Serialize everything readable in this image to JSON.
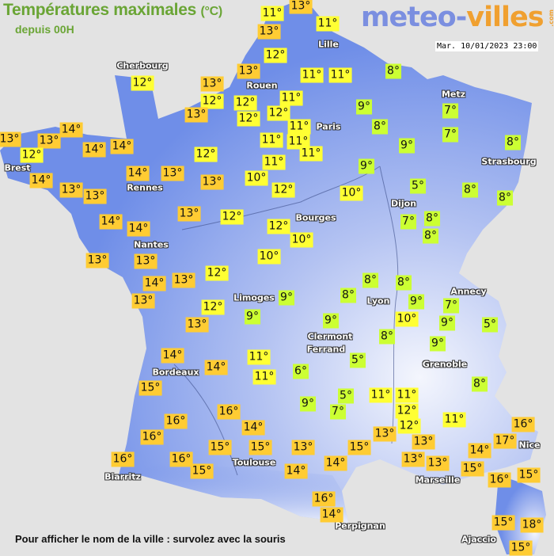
{
  "header": {
    "title": "Températures maximales",
    "unit": "(°C)",
    "subtitle": "depuis 00H",
    "logo_main": "meteo-",
    "logo_accent": "villes",
    "logo_suffix": ".com",
    "timestamp": "Mar. 10/01/2023 23:00"
  },
  "footer": {
    "hint": "Pour afficher le nom de la ville : survolez avec la souris"
  },
  "colors": {
    "sea": "#e3e3e3",
    "land_low": "#6f8ee8",
    "land_high": "#ffffff",
    "temp_warm": "#ffcc33",
    "temp_mild": "#ffff33",
    "temp_cold": "#ccff33"
  },
  "color_scale": {
    "warm_min": 13,
    "cold_max": 9
  },
  "cities": [
    "Cherbourg",
    "Lille",
    "Rouen",
    "Paris",
    "Metz",
    "Strasbourg",
    "Brest",
    "Rennes",
    "Dijon",
    "Bourges",
    "Nantes",
    "Limoges",
    "Annecy",
    "Lyon",
    "Clermont",
    "Ferrand",
    "Grenoble",
    "Bordeaux",
    "Toulouse",
    "Biarritz",
    "Marseille",
    "Nice",
    "Perpignan",
    "Ajaccio"
  ],
  "temperatures": [
    13,
    11,
    13,
    11,
    12,
    13,
    11,
    11,
    8,
    12,
    13,
    12,
    12,
    11,
    13,
    12,
    12,
    11,
    9,
    8,
    7,
    7,
    11,
    11,
    11,
    9,
    8,
    14,
    13,
    13,
    12,
    14,
    14,
    12,
    11,
    9,
    14,
    13,
    14,
    13,
    13,
    10,
    12,
    10,
    5,
    8,
    8,
    13,
    13,
    12,
    14,
    14,
    12,
    10,
    7,
    8,
    8,
    13,
    13,
    10,
    12,
    13,
    14,
    13,
    9,
    8,
    8,
    8,
    9,
    10,
    7,
    9,
    5,
    12,
    9,
    13,
    9,
    8,
    9,
    14,
    11,
    14,
    11,
    6,
    5,
    8,
    15,
    16,
    9,
    5,
    7,
    11,
    11,
    12,
    11,
    16,
    16,
    14,
    13,
    12,
    16,
    17,
    13,
    13,
    13,
    15,
    15,
    13,
    15,
    14,
    16,
    16,
    15,
    14,
    14,
    15,
    16,
    15,
    16,
    14,
    15,
    18,
    15
  ],
  "temp_suffix": "°"
}
